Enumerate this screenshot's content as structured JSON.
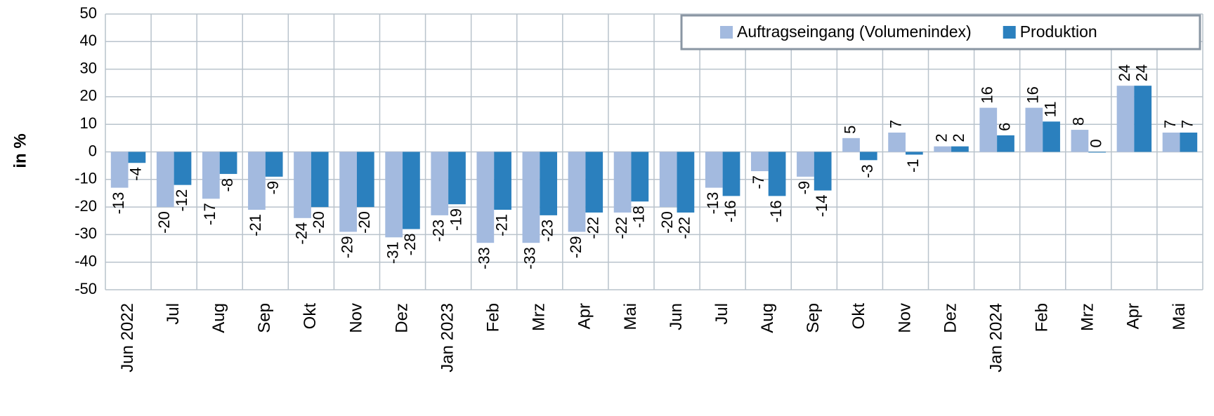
{
  "chart_data": {
    "type": "bar",
    "y_label": "in %",
    "categories": [
      "Jun 2022",
      "Jul",
      "Aug",
      "Sep",
      "Okt",
      "Nov",
      "Dez",
      "Jan 2023",
      "Feb",
      "Mrz",
      "Apr",
      "Mai",
      "Jun",
      "Jul",
      "Aug",
      "Sep",
      "Okt",
      "Nov",
      "Dez",
      "Jan 2024",
      "Feb",
      "Mrz",
      "Apr",
      "Mai"
    ],
    "series": [
      {
        "name": "Auftragseingang (Volumenindex)",
        "color": "#a3badf",
        "values": [
          -13,
          -20,
          -17,
          -21,
          -24,
          -29,
          -31,
          -23,
          -33,
          -33,
          -29,
          -22,
          -20,
          -13,
          -7,
          -9,
          5,
          7,
          2,
          16,
          16,
          8,
          24,
          7
        ]
      },
      {
        "name": "Produktion",
        "color": "#2b80be",
        "values": [
          -4,
          -12,
          -8,
          -9,
          -20,
          -20,
          -28,
          -19,
          -21,
          -23,
          -22,
          -18,
          -22,
          -16,
          -16,
          -14,
          -3,
          -1,
          2,
          6,
          11,
          0,
          24,
          7
        ]
      }
    ],
    "ylim": [
      -50,
      50
    ],
    "yticks": [
      -50,
      -40,
      -30,
      -20,
      -10,
      0,
      10,
      20,
      30,
      40,
      50
    ],
    "grid": true,
    "legend": "top-right"
  }
}
